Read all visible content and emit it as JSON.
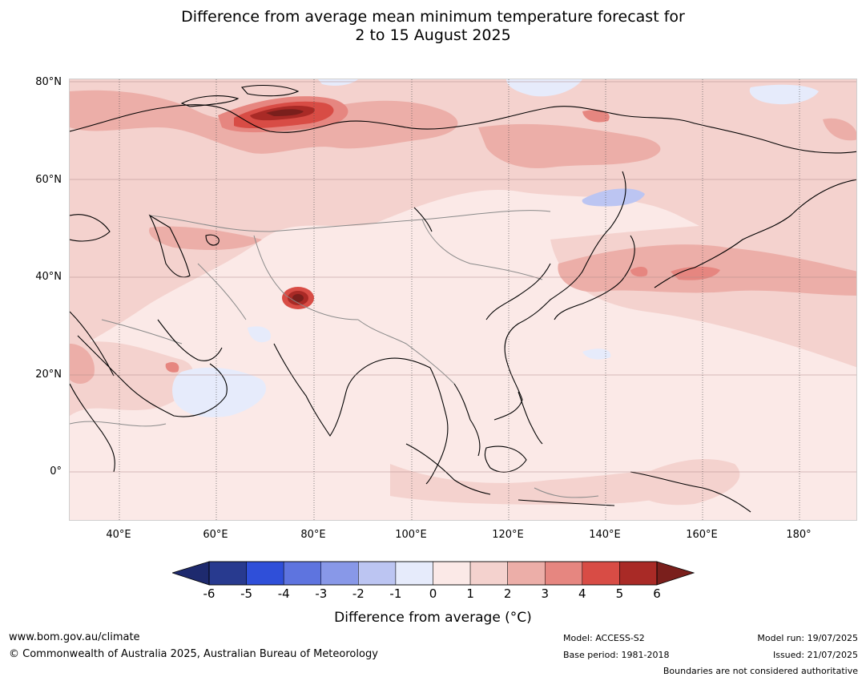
{
  "title": {
    "line1": "Difference from average mean minimum temperature forecast for",
    "line2": "2 to 15 August 2025"
  },
  "map": {
    "lat_labels": [
      "80°N",
      "60°N",
      "40°N",
      "20°N",
      "0°"
    ],
    "lon_labels": [
      "40°E",
      "60°E",
      "80°E",
      "100°E",
      "120°E",
      "140°E",
      "160°E",
      "180°"
    ],
    "anomaly_areas": [
      {
        "region": "north-west Siberia",
        "value_range": "4 to 6"
      },
      {
        "region": "western Tibetan Plateau",
        "value_range": "4 to 6"
      },
      {
        "region": "north-west Pacific",
        "value_range": "2 to 3"
      },
      {
        "region": "Arabian Sea / north-west India",
        "value_range": "-1 to 0"
      },
      {
        "region": "Sea of Okhotsk",
        "value_range": "-2 to -1"
      }
    ]
  },
  "colorbar": {
    "ticks": [
      "-6",
      "-5",
      "-4",
      "-3",
      "-2",
      "-1",
      "0",
      "1",
      "2",
      "3",
      "4",
      "5",
      "6"
    ],
    "colors": [
      "#283a8f",
      "#2f4fd9",
      "#5e74df",
      "#8898e8",
      "#bcc5f2",
      "#e6ebfb",
      "#fbe9e7",
      "#f4d2ce",
      "#ecaea8",
      "#e68680",
      "#d84c45",
      "#a92a26"
    ],
    "low_extend_color": "#1e2a6e",
    "high_extend_color": "#7a1f1c",
    "label": "Difference from average (°C)"
  },
  "footer": {
    "website": "www.bom.gov.au/climate",
    "copyright": "© Commonwealth of Australia 2025, Australian Bureau of Meteorology",
    "model": "Model: ACCESS-S2",
    "base_period": "Base period: 1981-2018",
    "model_run": "Model run: 19/07/2025",
    "issued": "Issued: 21/07/2025",
    "boundaries_note": "Boundaries are not considered authoritative"
  }
}
